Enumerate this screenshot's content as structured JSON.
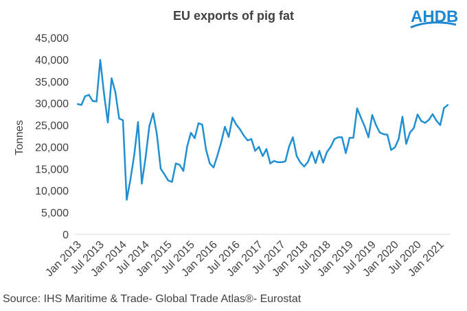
{
  "brand": {
    "logo_text": "AHDB",
    "logo_color": "#1e88d2"
  },
  "source": "Source: IHS Maritime & Trade- Global Trade Atlas®- Eurostat",
  "chart_data": {
    "type": "line",
    "title": "EU exports  of  pig  fat",
    "xlabel": "",
    "ylabel": "Tonnes",
    "ylim": [
      0,
      45000
    ],
    "yticks": [
      0,
      5000,
      10000,
      15000,
      20000,
      25000,
      30000,
      35000,
      40000,
      45000
    ],
    "ytick_labels": [
      "0",
      "5,000",
      "10,000",
      "15,000",
      "20,000",
      "25,000",
      "30,000",
      "35,000",
      "40,000",
      "45,000"
    ],
    "xtick_labels": [
      "Jan 2013",
      "Jul 2013",
      "Jan 2014",
      "Jul 2014",
      "Jan 2015",
      "Jul 2015",
      "Jan 2016",
      "Jul 2016",
      "Jan 2017",
      "Jul 2017",
      "Jan 2018",
      "Jul 2018",
      "Jan 2019",
      "Jul 2019",
      "Jan 2020",
      "Jul 2020",
      "Jan 2021"
    ],
    "line_color": "#1e8fd2",
    "series": [
      {
        "name": "EU exports of pig fat",
        "start": "Jan 2013",
        "values": [
          29800,
          29600,
          31600,
          31900,
          30500,
          30400,
          39900,
          32100,
          25600,
          35700,
          32500,
          26500,
          26100,
          7900,
          12600,
          18200,
          25700,
          11600,
          17600,
          24800,
          27700,
          22800,
          15000,
          13700,
          12300,
          12000,
          16200,
          15900,
          14500,
          20100,
          23200,
          22000,
          25400,
          25100,
          19400,
          16200,
          15300,
          18000,
          21000,
          24600,
          22300,
          26700,
          25100,
          24000,
          22600,
          21500,
          21800,
          19100,
          20000,
          17900,
          19500,
          16200,
          16800,
          16500,
          16500,
          16700,
          20100,
          22200,
          17900,
          16400,
          15500,
          16600,
          18800,
          16300,
          19100,
          16400,
          18800,
          20000,
          21800,
          22200,
          22200,
          18600,
          22100,
          22100,
          28800,
          26700,
          24700,
          22200,
          27300,
          25000,
          23300,
          22900,
          22800,
          19300,
          19900,
          21800,
          26900,
          20700,
          23300,
          24300,
          27400,
          25900,
          25500,
          26200,
          27500,
          26000,
          25000,
          28900,
          29600
        ]
      }
    ]
  }
}
